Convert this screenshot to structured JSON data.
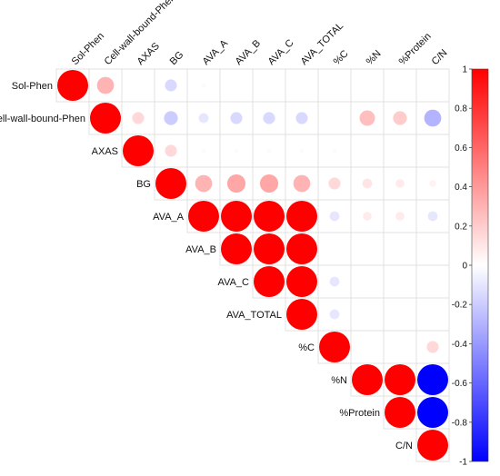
{
  "chart_data": {
    "type": "heatmap",
    "style": "upper-triangle correlation matrix, circles sized and colored by correlation",
    "variables": [
      "Sol-Phen",
      "Cell-wall-bound-Phen",
      "AXAS",
      "BG",
      "AVA_A",
      "AVA_B",
      "AVA_C",
      "AVA_TOTAL",
      "%C",
      "%N",
      "%Protein",
      "C/N"
    ],
    "matrix": [
      [
        1.0,
        0.3,
        0.0,
        -0.15,
        0.02,
        0.0,
        0.0,
        0.0,
        0.0,
        0.0,
        0.0,
        0.0
      ],
      [
        0.3,
        1.0,
        0.15,
        -0.2,
        -0.1,
        -0.15,
        -0.15,
        -0.15,
        0.0,
        0.25,
        0.2,
        -0.3
      ],
      [
        0.0,
        0.15,
        1.0,
        0.15,
        0.02,
        0.02,
        0.02,
        0.02,
        0.02,
        0.0,
        0.0,
        0.0
      ],
      [
        -0.15,
        -0.2,
        0.15,
        1.0,
        0.3,
        0.35,
        0.35,
        0.3,
        0.15,
        0.1,
        0.08,
        0.05
      ],
      [
        0.02,
        -0.1,
        0.02,
        0.3,
        1.0,
        1.0,
        1.0,
        1.0,
        -0.1,
        0.08,
        0.08,
        -0.1
      ],
      [
        0.0,
        -0.15,
        0.02,
        0.35,
        1.0,
        1.0,
        1.0,
        1.0,
        0.0,
        0.0,
        0.0,
        0.0
      ],
      [
        0.0,
        -0.15,
        0.02,
        0.35,
        1.0,
        1.0,
        1.0,
        1.0,
        -0.1,
        0.0,
        0.0,
        0.0
      ],
      [
        0.0,
        -0.15,
        0.02,
        0.3,
        1.0,
        1.0,
        1.0,
        1.0,
        -0.1,
        0.0,
        0.0,
        0.0
      ],
      [
        0.0,
        0.0,
        0.02,
        0.15,
        -0.1,
        0.0,
        -0.1,
        -0.1,
        1.0,
        0.0,
        0.0,
        0.15
      ],
      [
        0.0,
        0.25,
        0.0,
        0.1,
        0.08,
        0.0,
        0.0,
        0.0,
        0.0,
        1.0,
        1.0,
        -1.0
      ],
      [
        0.0,
        0.2,
        0.0,
        0.08,
        0.08,
        0.0,
        0.0,
        0.0,
        0.0,
        1.0,
        1.0,
        -1.0
      ],
      [
        0.0,
        -0.3,
        0.0,
        0.05,
        -0.1,
        0.0,
        0.0,
        0.0,
        0.15,
        -1.0,
        -1.0,
        1.0
      ]
    ],
    "color_scale": {
      "min": -1,
      "max": 1,
      "low": "#0000ff",
      "mid": "#ffffff",
      "high": "#ff0000"
    },
    "legend": {
      "position": "right",
      "ticks": [
        "1",
        "0.8",
        "0.6",
        "0.4",
        "0.2",
        "0",
        "-0.2",
        "-0.4",
        "-0.6",
        "-0.8",
        "-1"
      ],
      "tick_values": [
        1,
        0.8,
        0.6,
        0.4,
        0.2,
        0,
        -0.2,
        -0.4,
        -0.6,
        -0.8,
        -1
      ]
    },
    "grid": true
  }
}
